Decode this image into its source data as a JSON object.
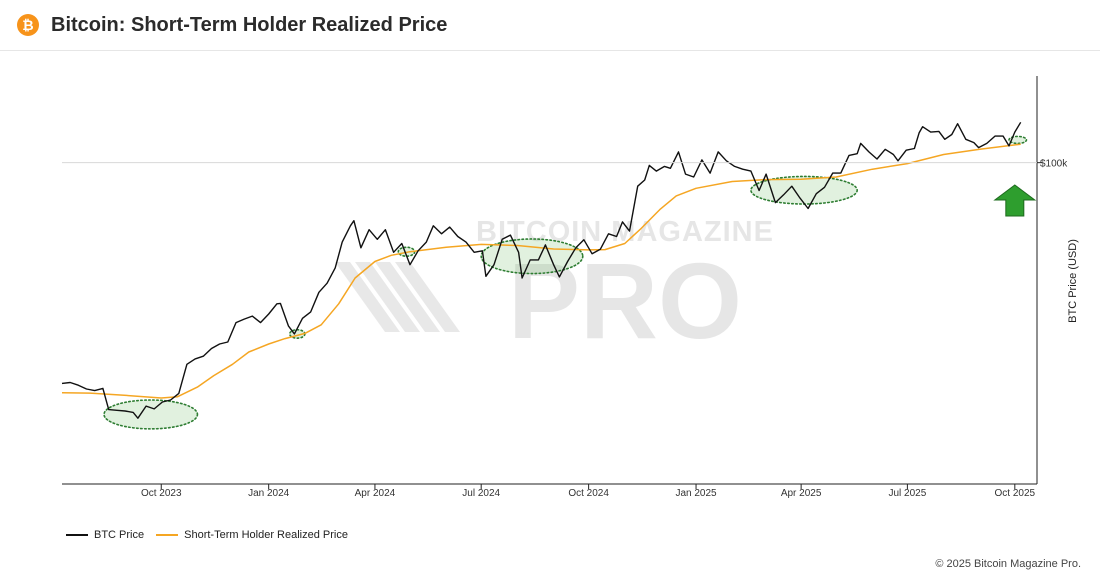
{
  "header": {
    "title": "Bitcoin: Short-Term Holder Realized Price",
    "logo_glyph": "₿",
    "logo_icon": "bitcoin-icon",
    "brand_color": "#f7931a"
  },
  "watermark": {
    "line1": "BITCOIN MAGAZINE",
    "line2": "PRO"
  },
  "copyright": "© 2025 Bitcoin Magazine Pro.",
  "chart_data": {
    "type": "line",
    "title": "Bitcoin: Short-Term Holder Realized Price",
    "xlabel": "",
    "ylabel": "BTC Price (USD)",
    "yscale": "log",
    "ylim": [
      17500,
      160000
    ],
    "xlim": [
      "2023-07-08",
      "2025-10-20"
    ],
    "grid": false,
    "legend_position": "bottom-left",
    "x_ticks": [
      {
        "date": "2023-10-01",
        "label": "Oct 2023"
      },
      {
        "date": "2024-01-01",
        "label": "Jan 2024"
      },
      {
        "date": "2024-04-01",
        "label": "Apr 2024"
      },
      {
        "date": "2024-07-01",
        "label": "Jul 2024"
      },
      {
        "date": "2024-10-01",
        "label": "Oct 2024"
      },
      {
        "date": "2025-01-01",
        "label": "Jan 2025"
      },
      {
        "date": "2025-04-01",
        "label": "Apr 2025"
      },
      {
        "date": "2025-07-01",
        "label": "Jul 2025"
      },
      {
        "date": "2025-10-01",
        "label": "Oct 2025"
      }
    ],
    "y_ticks": [
      {
        "value": 100000,
        "label": "$100k"
      }
    ],
    "series": [
      {
        "name": "BTC Price",
        "color": "#111111",
        "points": [
          [
            "2023-07-08",
            30200
          ],
          [
            "2023-07-15",
            30350
          ],
          [
            "2023-07-22",
            29900
          ],
          [
            "2023-07-29",
            29300
          ],
          [
            "2023-08-05",
            29050
          ],
          [
            "2023-08-12",
            29400
          ],
          [
            "2023-08-17",
            26200
          ],
          [
            "2023-08-24",
            26100
          ],
          [
            "2023-08-31",
            26000
          ],
          [
            "2023-09-07",
            25800
          ],
          [
            "2023-09-11",
            25000
          ],
          [
            "2023-09-18",
            26700
          ],
          [
            "2023-09-25",
            26300
          ],
          [
            "2023-10-02",
            27300
          ],
          [
            "2023-10-09",
            27600
          ],
          [
            "2023-10-16",
            28600
          ],
          [
            "2023-10-23",
            33500
          ],
          [
            "2023-10-30",
            34500
          ],
          [
            "2023-11-06",
            35000
          ],
          [
            "2023-11-13",
            36500
          ],
          [
            "2023-11-20",
            37400
          ],
          [
            "2023-11-27",
            37800
          ],
          [
            "2023-12-04",
            42000
          ],
          [
            "2023-12-11",
            42800
          ],
          [
            "2023-12-18",
            43500
          ],
          [
            "2023-12-25",
            42000
          ],
          [
            "2024-01-01",
            44000
          ],
          [
            "2024-01-08",
            46500
          ],
          [
            "2024-01-11",
            46600
          ],
          [
            "2024-01-18",
            41200
          ],
          [
            "2024-01-23",
            39500
          ],
          [
            "2024-01-30",
            43000
          ],
          [
            "2024-02-06",
            44500
          ],
          [
            "2024-02-13",
            49500
          ],
          [
            "2024-02-20",
            52000
          ],
          [
            "2024-02-27",
            56500
          ],
          [
            "2024-03-04",
            65000
          ],
          [
            "2024-03-11",
            71000
          ],
          [
            "2024-03-14",
            73000
          ],
          [
            "2024-03-20",
            63000
          ],
          [
            "2024-03-27",
            69500
          ],
          [
            "2024-04-03",
            66000
          ],
          [
            "2024-04-10",
            69500
          ],
          [
            "2024-04-17",
            61500
          ],
          [
            "2024-04-24",
            64500
          ],
          [
            "2024-05-01",
            57500
          ],
          [
            "2024-05-08",
            62000
          ],
          [
            "2024-05-15",
            65000
          ],
          [
            "2024-05-21",
            71000
          ],
          [
            "2024-05-28",
            68000
          ],
          [
            "2024-06-04",
            70500
          ],
          [
            "2024-06-11",
            67000
          ],
          [
            "2024-06-18",
            65000
          ],
          [
            "2024-06-25",
            61500
          ],
          [
            "2024-07-02",
            62000
          ],
          [
            "2024-07-05",
            54000
          ],
          [
            "2024-07-12",
            57500
          ],
          [
            "2024-07-19",
            66000
          ],
          [
            "2024-07-26",
            67500
          ],
          [
            "2024-08-02",
            61500
          ],
          [
            "2024-08-05",
            53500
          ],
          [
            "2024-08-12",
            59000
          ],
          [
            "2024-08-19",
            59000
          ],
          [
            "2024-08-25",
            64000
          ],
          [
            "2024-09-01",
            57500
          ],
          [
            "2024-09-06",
            53800
          ],
          [
            "2024-09-13",
            58500
          ],
          [
            "2024-09-20",
            63000
          ],
          [
            "2024-09-27",
            65800
          ],
          [
            "2024-10-04",
            61000
          ],
          [
            "2024-10-11",
            62500
          ],
          [
            "2024-10-18",
            68000
          ],
          [
            "2024-10-25",
            67000
          ],
          [
            "2024-10-30",
            72500
          ],
          [
            "2024-11-05",
            69000
          ],
          [
            "2024-11-08",
            76500
          ],
          [
            "2024-11-12",
            88000
          ],
          [
            "2024-11-18",
            91000
          ],
          [
            "2024-11-22",
            98500
          ],
          [
            "2024-11-28",
            95500
          ],
          [
            "2024-12-05",
            98000
          ],
          [
            "2024-12-10",
            97000
          ],
          [
            "2024-12-17",
            106000
          ],
          [
            "2024-12-23",
            94000
          ],
          [
            "2024-12-30",
            92500
          ],
          [
            "2025-01-06",
            101500
          ],
          [
            "2025-01-13",
            94500
          ],
          [
            "2025-01-20",
            106000
          ],
          [
            "2025-01-27",
            101000
          ],
          [
            "2025-02-03",
            98000
          ],
          [
            "2025-02-10",
            96500
          ],
          [
            "2025-02-17",
            95500
          ],
          [
            "2025-02-24",
            86000
          ],
          [
            "2025-03-02",
            94000
          ],
          [
            "2025-03-10",
            80500
          ],
          [
            "2025-03-17",
            84000
          ],
          [
            "2025-03-24",
            88000
          ],
          [
            "2025-03-31",
            82500
          ],
          [
            "2025-04-07",
            78000
          ],
          [
            "2025-04-14",
            84500
          ],
          [
            "2025-04-21",
            87500
          ],
          [
            "2025-04-28",
            94500
          ],
          [
            "2025-05-05",
            94500
          ],
          [
            "2025-05-12",
            104000
          ],
          [
            "2025-05-19",
            105000
          ],
          [
            "2025-05-22",
            111000
          ],
          [
            "2025-05-29",
            106000
          ],
          [
            "2025-06-05",
            102000
          ],
          [
            "2025-06-12",
            107500
          ],
          [
            "2025-06-19",
            104500
          ],
          [
            "2025-06-23",
            101000
          ],
          [
            "2025-06-30",
            107000
          ],
          [
            "2025-07-07",
            108000
          ],
          [
            "2025-07-11",
            117500
          ],
          [
            "2025-07-14",
            121500
          ],
          [
            "2025-07-21",
            118000
          ],
          [
            "2025-07-28",
            118500
          ],
          [
            "2025-08-02",
            113500
          ],
          [
            "2025-08-08",
            116500
          ],
          [
            "2025-08-13",
            123500
          ],
          [
            "2025-08-20",
            113500
          ],
          [
            "2025-08-27",
            111500
          ],
          [
            "2025-08-31",
            108500
          ],
          [
            "2025-09-07",
            111000
          ],
          [
            "2025-09-14",
            115500
          ],
          [
            "2025-09-21",
            115500
          ],
          [
            "2025-09-26",
            109500
          ],
          [
            "2025-10-01",
            118000
          ],
          [
            "2025-10-06",
            124500
          ]
        ]
      },
      {
        "name": "Short-Term Holder Realized Price",
        "color": "#f5a623",
        "points": [
          [
            "2023-07-08",
            28700
          ],
          [
            "2023-08-01",
            28650
          ],
          [
            "2023-09-01",
            28300
          ],
          [
            "2023-10-01",
            27900
          ],
          [
            "2023-10-15",
            28100
          ],
          [
            "2023-11-01",
            29600
          ],
          [
            "2023-11-15",
            31500
          ],
          [
            "2023-12-01",
            33500
          ],
          [
            "2023-12-15",
            35800
          ],
          [
            "2024-01-01",
            37400
          ],
          [
            "2024-01-15",
            38500
          ],
          [
            "2024-02-01",
            39600
          ],
          [
            "2024-02-15",
            41500
          ],
          [
            "2024-03-01",
            46500
          ],
          [
            "2024-03-15",
            53500
          ],
          [
            "2024-04-01",
            58500
          ],
          [
            "2024-04-15",
            60500
          ],
          [
            "2024-05-01",
            61700
          ],
          [
            "2024-06-01",
            63200
          ],
          [
            "2024-07-01",
            64200
          ],
          [
            "2024-08-01",
            63800
          ],
          [
            "2024-09-01",
            62600
          ],
          [
            "2024-10-01",
            62300
          ],
          [
            "2024-10-15",
            62400
          ],
          [
            "2024-11-01",
            64500
          ],
          [
            "2024-11-15",
            70000
          ],
          [
            "2024-12-01",
            77500
          ],
          [
            "2024-12-15",
            83500
          ],
          [
            "2025-01-01",
            87000
          ],
          [
            "2025-02-01",
            90300
          ],
          [
            "2025-03-01",
            91200
          ],
          [
            "2025-04-01",
            91400
          ],
          [
            "2025-05-01",
            92500
          ],
          [
            "2025-06-01",
            96500
          ],
          [
            "2025-07-01",
            99500
          ],
          [
            "2025-08-01",
            104500
          ],
          [
            "2025-09-01",
            107500
          ],
          [
            "2025-10-06",
            110500
          ]
        ]
      }
    ],
    "annotations": [
      {
        "type": "ellipse",
        "name": "oct-2023-support-zone",
        "x_range": [
          "2023-08-13",
          "2023-11-01"
        ],
        "y_range": [
          23600,
          27600
        ]
      },
      {
        "type": "ellipse",
        "name": "feb-2024-support-zone",
        "x_range": [
          "2024-01-19",
          "2024-02-01"
        ],
        "y_range": [
          38600,
          40400
        ]
      },
      {
        "type": "ellipse",
        "name": "apr-2024-support-zone",
        "x_range": [
          "2024-04-21",
          "2024-05-05"
        ],
        "y_range": [
          60200,
          63200
        ]
      },
      {
        "type": "ellipse",
        "name": "aug-2024-support-zone",
        "x_range": [
          "2024-07-01",
          "2024-09-26"
        ],
        "y_range": [
          54800,
          66100
        ]
      },
      {
        "type": "ellipse",
        "name": "apr-2025-support-zone",
        "x_range": [
          "2025-02-17",
          "2025-05-19"
        ],
        "y_range": [
          79900,
          92800
        ]
      },
      {
        "type": "ellipse",
        "name": "oct-2025-support-zone",
        "x_range": [
          "2025-09-26",
          "2025-10-11"
        ],
        "y_range": [
          111000,
          115300
        ]
      },
      {
        "type": "arrow-up",
        "name": "buy-signal-arrow",
        "color": "#2e9e2e",
        "at_date": "2025-10-01"
      }
    ],
    "legend": [
      {
        "label": "BTC Price",
        "color": "#111111"
      },
      {
        "label": "Short-Term Holder Realized Price",
        "color": "#f5a623"
      }
    ]
  }
}
